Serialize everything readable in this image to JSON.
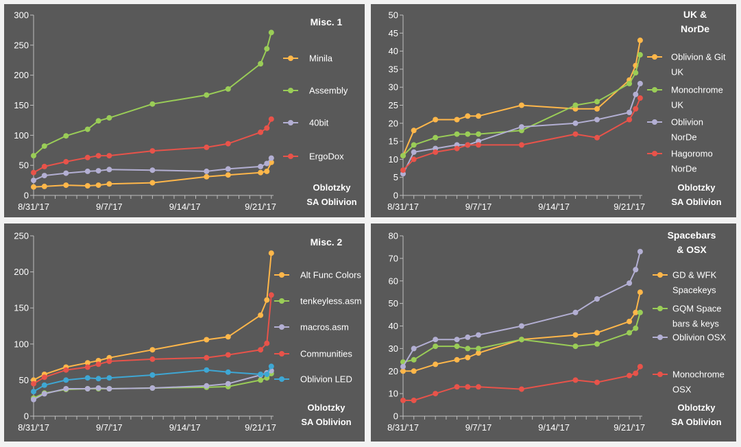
{
  "credit": [
    "Oblotzky",
    "SA Oblivion"
  ],
  "colors": {
    "background": "#595959",
    "page": "#f2f2f2",
    "orange": "#ffb74a",
    "green": "#9acd57",
    "lavender": "#b3afd3",
    "red": "#e8534a",
    "blue": "#3ea7d4"
  },
  "chart_data": [
    {
      "type": "line",
      "title": [
        "Misc. 1"
      ],
      "x_axis": "date",
      "xticks": [
        "8/31/'17",
        "9/7/'17",
        "9/14/'17",
        "9/21/'17"
      ],
      "ylim": [
        0,
        300
      ],
      "yticks": [
        0,
        50,
        100,
        150,
        200,
        250,
        300
      ],
      "grid": false,
      "legend": "right",
      "series": [
        {
          "name": [
            "Minila"
          ],
          "color": "#ffb74a",
          "x": [
            "2017-08-31",
            "2017-09-01",
            "2017-09-03",
            "2017-09-05",
            "2017-09-06",
            "2017-09-07",
            "2017-09-11",
            "2017-09-16",
            "2017-09-18",
            "2017-09-21",
            "2017-09-21T14",
            "2017-09-22"
          ],
          "y": [
            14,
            15,
            17,
            16,
            17,
            19,
            21,
            31,
            34,
            38,
            40,
            55
          ]
        },
        {
          "name": [
            "Assembly"
          ],
          "color": "#9acd57",
          "x": [
            "2017-08-31",
            "2017-09-01",
            "2017-09-03",
            "2017-09-05",
            "2017-09-06",
            "2017-09-07",
            "2017-09-11",
            "2017-09-16",
            "2017-09-18",
            "2017-09-21",
            "2017-09-21T14",
            "2017-09-22"
          ],
          "y": [
            66,
            82,
            99,
            110,
            124,
            129,
            152,
            167,
            177,
            219,
            244,
            271
          ]
        },
        {
          "name": [
            "40bit"
          ],
          "color": "#b3afd3",
          "x": [
            "2017-08-31",
            "2017-09-01",
            "2017-09-03",
            "2017-09-05",
            "2017-09-06",
            "2017-09-07",
            "2017-09-11",
            "2017-09-16",
            "2017-09-18",
            "2017-09-21",
            "2017-09-21T14",
            "2017-09-22"
          ],
          "y": [
            25,
            33,
            37,
            40,
            41,
            43,
            42,
            40,
            44,
            48,
            53,
            62
          ]
        },
        {
          "name": [
            "ErgoDox"
          ],
          "color": "#e8534a",
          "x": [
            "2017-08-31",
            "2017-09-01",
            "2017-09-03",
            "2017-09-05",
            "2017-09-06",
            "2017-09-07",
            "2017-09-11",
            "2017-09-16",
            "2017-09-18",
            "2017-09-21",
            "2017-09-21T14",
            "2017-09-22"
          ],
          "y": [
            38,
            48,
            56,
            63,
            66,
            66,
            74,
            80,
            86,
            105,
            112,
            127
          ]
        }
      ]
    },
    {
      "type": "line",
      "title": [
        "UK &",
        "NorDe"
      ],
      "x_axis": "date",
      "xticks": [
        "8/31/'17",
        "9/7/'17",
        "9/14/'17",
        "9/21/'17"
      ],
      "ylim": [
        0,
        50
      ],
      "yticks": [
        0,
        5,
        10,
        15,
        20,
        25,
        30,
        35,
        40,
        45,
        50
      ],
      "grid": false,
      "legend": "right",
      "series": [
        {
          "name": [
            "Oblivion & Git",
            "UK"
          ],
          "color": "#ffb74a",
          "x": [
            "2017-08-31",
            "2017-09-01",
            "2017-09-03",
            "2017-09-05",
            "2017-09-06",
            "2017-09-07",
            "2017-09-11",
            "2017-09-16",
            "2017-09-18",
            "2017-09-21",
            "2017-09-21T14",
            "2017-09-22"
          ],
          "y": [
            11,
            18,
            21,
            21,
            22,
            22,
            25,
            24,
            24,
            32,
            36,
            43
          ]
        },
        {
          "name": [
            "Monochrome",
            "UK"
          ],
          "color": "#9acd57",
          "x": [
            "2017-08-31",
            "2017-09-01",
            "2017-09-03",
            "2017-09-05",
            "2017-09-06",
            "2017-09-07",
            "2017-09-11",
            "2017-09-16",
            "2017-09-18",
            "2017-09-21",
            "2017-09-21T14",
            "2017-09-22"
          ],
          "y": [
            11,
            14,
            16,
            17,
            17,
            17,
            18,
            25,
            26,
            31,
            34,
            39
          ]
        },
        {
          "name": [
            "Oblivion",
            "NorDe"
          ],
          "color": "#b3afd3",
          "x": [
            "2017-08-31",
            "2017-09-01",
            "2017-09-03",
            "2017-09-05",
            "2017-09-06",
            "2017-09-07",
            "2017-09-11",
            "2017-09-16",
            "2017-09-18",
            "2017-09-21",
            "2017-09-21T14",
            "2017-09-22"
          ],
          "y": [
            6,
            12,
            13,
            14,
            14,
            15,
            19,
            20,
            21,
            23,
            28,
            31
          ]
        },
        {
          "name": [
            "Hagoromo",
            "NorDe"
          ],
          "color": "#e8534a",
          "x": [
            "2017-08-31",
            "2017-09-01",
            "2017-09-03",
            "2017-09-05",
            "2017-09-06",
            "2017-09-07",
            "2017-09-11",
            "2017-09-16",
            "2017-09-18",
            "2017-09-21",
            "2017-09-21T14",
            "2017-09-22"
          ],
          "y": [
            7,
            10,
            12,
            13,
            14,
            14,
            14,
            17,
            16,
            21,
            24,
            27
          ]
        }
      ]
    },
    {
      "type": "line",
      "title": [
        "Misc. 2"
      ],
      "x_axis": "date",
      "xticks": [
        "8/31/'17",
        "9/7/'17",
        "9/14/'17",
        "9/21/'17"
      ],
      "ylim": [
        0,
        250
      ],
      "yticks": [
        0,
        50,
        100,
        150,
        200,
        250
      ],
      "grid": false,
      "legend": "right",
      "series": [
        {
          "name": [
            "Alt Func Colors"
          ],
          "color": "#ffb74a",
          "x": [
            "2017-08-31",
            "2017-09-01",
            "2017-09-03",
            "2017-09-05",
            "2017-09-06",
            "2017-09-07",
            "2017-09-11",
            "2017-09-16",
            "2017-09-18",
            "2017-09-21",
            "2017-09-21T14",
            "2017-09-22"
          ],
          "y": [
            50,
            58,
            68,
            74,
            77,
            81,
            92,
            106,
            110,
            140,
            161,
            226
          ]
        },
        {
          "name": [
            "tenkeyless.asm"
          ],
          "color": "#9acd57",
          "x": [
            "2017-08-31",
            "2017-09-01",
            "2017-09-03",
            "2017-09-05",
            "2017-09-06",
            "2017-09-07",
            "2017-09-11",
            "2017-09-16",
            "2017-09-18",
            "2017-09-21",
            "2017-09-21T14",
            "2017-09-22"
          ],
          "y": [
            25,
            32,
            37,
            38,
            38,
            38,
            39,
            40,
            41,
            50,
            53,
            59
          ]
        },
        {
          "name": [
            "macros.asm"
          ],
          "color": "#b3afd3",
          "x": [
            "2017-08-31",
            "2017-09-01",
            "2017-09-03",
            "2017-09-05",
            "2017-09-06",
            "2017-09-07",
            "2017-09-11",
            "2017-09-16",
            "2017-09-18",
            "2017-09-21",
            "2017-09-21T14",
            "2017-09-22"
          ],
          "y": [
            23,
            31,
            38,
            38,
            39,
            38,
            39,
            42,
            45,
            57,
            60,
            63
          ]
        },
        {
          "name": [
            "Communities"
          ],
          "color": "#e8534a",
          "x": [
            "2017-08-31",
            "2017-09-01",
            "2017-09-03",
            "2017-09-05",
            "2017-09-06",
            "2017-09-07",
            "2017-09-11",
            "2017-09-16",
            "2017-09-18",
            "2017-09-21",
            "2017-09-21T14",
            "2017-09-22"
          ],
          "y": [
            45,
            54,
            64,
            68,
            72,
            76,
            79,
            81,
            85,
            92,
            101,
            168
          ]
        },
        {
          "name": [
            "Oblivion LED"
          ],
          "color": "#3ea7d4",
          "x": [
            "2017-08-31",
            "2017-09-01",
            "2017-09-03",
            "2017-09-05",
            "2017-09-06",
            "2017-09-07",
            "2017-09-11",
            "2017-09-16",
            "2017-09-18",
            "2017-09-21",
            "2017-09-21T14",
            "2017-09-22"
          ],
          "y": [
            34,
            43,
            50,
            53,
            52,
            53,
            57,
            64,
            61,
            58,
            58,
            69
          ]
        }
      ]
    },
    {
      "type": "line",
      "title": [
        "Spacebars",
        "& OSX"
      ],
      "x_axis": "date",
      "xticks": [
        "8/31/'17",
        "9/7/'17",
        "9/14/'17",
        "9/21/'17"
      ],
      "ylim": [
        0,
        80
      ],
      "yticks": [
        0,
        10,
        20,
        30,
        40,
        50,
        60,
        70,
        80
      ],
      "grid": false,
      "legend": "right",
      "series": [
        {
          "name": [
            "GD & WFK",
            "Spacekeys"
          ],
          "color": "#ffb74a",
          "x": [
            "2017-08-31",
            "2017-09-01",
            "2017-09-03",
            "2017-09-05",
            "2017-09-06",
            "2017-09-07",
            "2017-09-11",
            "2017-09-16",
            "2017-09-18",
            "2017-09-21",
            "2017-09-21T14",
            "2017-09-22"
          ],
          "y": [
            20,
            20,
            23,
            25,
            26,
            28,
            34,
            36,
            37,
            42,
            46,
            55
          ]
        },
        {
          "name": [
            "GQM Space",
            "bars & keys"
          ],
          "color": "#9acd57",
          "x": [
            "2017-08-31",
            "2017-09-01",
            "2017-09-03",
            "2017-09-05",
            "2017-09-06",
            "2017-09-07",
            "2017-09-11",
            "2017-09-16",
            "2017-09-18",
            "2017-09-21",
            "2017-09-21T14",
            "2017-09-22"
          ],
          "y": [
            24,
            25,
            31,
            31,
            30,
            30,
            34,
            31,
            32,
            37,
            39,
            46
          ]
        },
        {
          "name": [
            "Oblivion OSX"
          ],
          "color": "#b3afd3",
          "x": [
            "2017-08-31",
            "2017-09-01",
            "2017-09-03",
            "2017-09-05",
            "2017-09-06",
            "2017-09-07",
            "2017-09-11",
            "2017-09-16",
            "2017-09-18",
            "2017-09-21",
            "2017-09-21T14",
            "2017-09-22"
          ],
          "y": [
            22,
            30,
            34,
            34,
            35,
            36,
            40,
            46,
            52,
            59,
            65,
            73
          ]
        },
        {
          "name": [
            "Monochrome",
            "OSX"
          ],
          "color": "#e8534a",
          "x": [
            "2017-08-31",
            "2017-09-01",
            "2017-09-03",
            "2017-09-05",
            "2017-09-06",
            "2017-09-07",
            "2017-09-11",
            "2017-09-16",
            "2017-09-18",
            "2017-09-21",
            "2017-09-21T14",
            "2017-09-22"
          ],
          "y": [
            7,
            7,
            10,
            13,
            13,
            13,
            12,
            16,
            15,
            18,
            19,
            22
          ]
        }
      ]
    }
  ]
}
